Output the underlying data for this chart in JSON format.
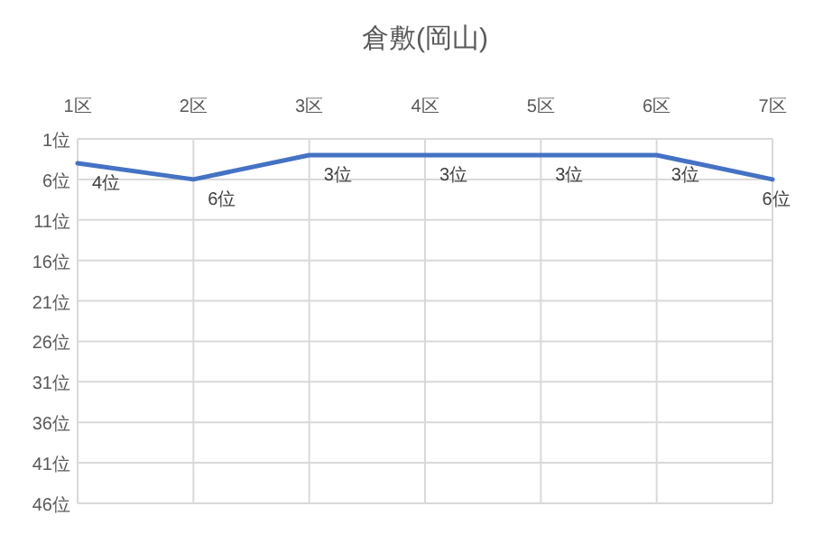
{
  "chart_data": {
    "type": "line",
    "title": "倉敷(岡山)",
    "categories": [
      "1区",
      "2区",
      "3区",
      "4区",
      "5区",
      "6区",
      "7区"
    ],
    "series": [
      {
        "color": "#4472c4",
        "values": [
          4,
          6,
          3,
          3,
          3,
          3,
          6
        ],
        "value_labels": [
          "4位",
          "6位",
          "3位",
          "3位",
          "3位",
          "3位",
          "6位"
        ]
      }
    ],
    "ylim": [
      46,
      1
    ],
    "yticks": [
      {
        "value": 1,
        "label": "1位"
      },
      {
        "value": 6,
        "label": "6位"
      },
      {
        "value": 11,
        "label": "11位"
      },
      {
        "value": 16,
        "label": "16位"
      },
      {
        "value": 21,
        "label": "21位"
      },
      {
        "value": 26,
        "label": "26位"
      },
      {
        "value": 31,
        "label": "31位"
      },
      {
        "value": 36,
        "label": "36位"
      },
      {
        "value": 41,
        "label": "41位"
      },
      {
        "value": 46,
        "label": "46位"
      }
    ],
    "grid": true,
    "marker": "none",
    "line_style": "solid"
  }
}
